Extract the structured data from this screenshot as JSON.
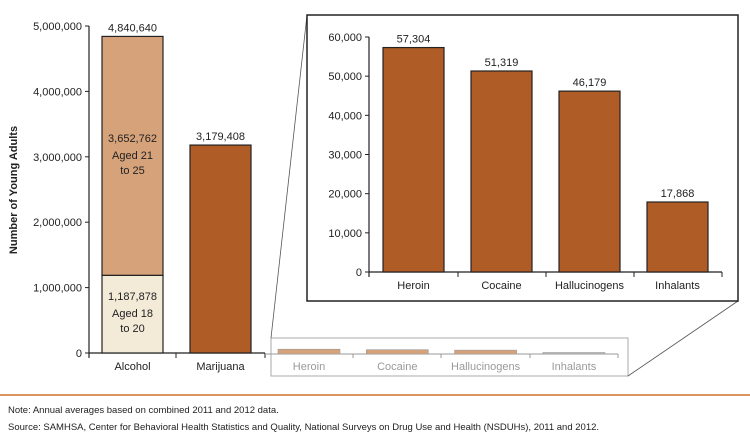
{
  "chart_data": [
    {
      "type": "bar",
      "stacked": true,
      "ylabel": "Number of Young Adults",
      "ylim": [
        0,
        5000000
      ],
      "yticks": [
        "0",
        "1,000,000",
        "2,000,000",
        "3,000,000",
        "4,000,000",
        "5,000,000"
      ],
      "categories": [
        "Alcohol",
        "Marijuana"
      ],
      "totals": [
        4840640,
        3179408
      ],
      "total_labels": [
        "4,840,640",
        "3,179,408"
      ],
      "segments": [
        {
          "category": "Alcohol",
          "value": 1187878,
          "label": "1,187,878",
          "lines": [
            "Aged 18",
            "to 20"
          ],
          "color": "#f3ead8"
        },
        {
          "category": "Alcohol",
          "value": 3652762,
          "label": "3,652,762",
          "lines": [
            "Aged 21",
            "to 25"
          ],
          "color": "#d6a27a"
        },
        {
          "category": "Marijuana",
          "value": 3179408,
          "label": "",
          "lines": [],
          "color": "#b05c26"
        }
      ],
      "grid": false
    },
    {
      "type": "bar",
      "ylim": [
        0,
        60000
      ],
      "yticks": [
        "0",
        "10,000",
        "20,000",
        "30,000",
        "40,000",
        "50,000",
        "60,000"
      ],
      "categories": [
        "Heroin",
        "Cocaine",
        "Hallucinogens",
        "Inhalants"
      ],
      "values": [
        57304,
        51319,
        46179,
        17868
      ],
      "value_labels": [
        "57,304",
        "51,319",
        "46,179",
        "17,868"
      ],
      "color": "#b05c26",
      "grid": false
    }
  ],
  "footer": {
    "note": "Note: Annual averages based on combined 2011 and 2012 data.",
    "source": "Source: SAMHSA, Center for Behavioral Health Statistics and Quality, National Surveys on Drug Use and Health (NSDUHs), 2011 and 2012."
  },
  "colors": {
    "rule": "#d0702f",
    "axis": "#222222",
    "faded": "#999999"
  }
}
